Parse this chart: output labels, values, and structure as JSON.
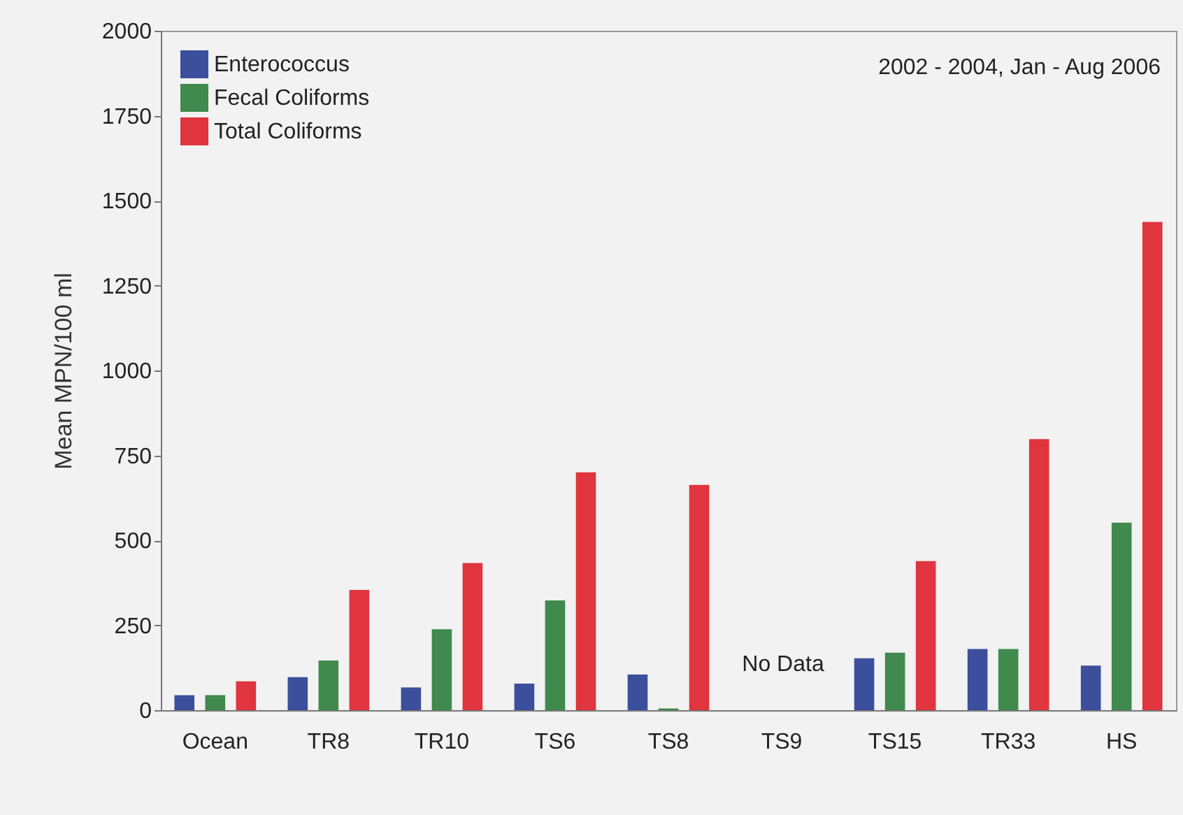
{
  "chart_data": {
    "type": "bar",
    "ylabel": "Mean MPN/100 ml",
    "categories": [
      "Ocean",
      "TR8",
      "TR10",
      "TS6",
      "TS8",
      "TS9",
      "TS15",
      "TR33",
      "HS"
    ],
    "series": [
      {
        "name": "Enterococcus",
        "color": "#3b4f9c",
        "values": [
          44,
          97,
          67,
          78,
          105,
          null,
          153,
          180,
          131
        ]
      },
      {
        "name": "Fecal Coliforms",
        "color": "#3f8a4c",
        "values": [
          44,
          146,
          238,
          323,
          5,
          null,
          169,
          180,
          552
        ]
      },
      {
        "name": "Total Coliforms",
        "color": "#e0343e",
        "values": [
          85,
          354,
          433,
          700,
          663,
          null,
          439,
          798,
          1437
        ]
      }
    ],
    "ylim": [
      0,
      2000
    ],
    "yticks": [
      0,
      250,
      500,
      750,
      1000,
      1250,
      1500,
      1750,
      2000
    ],
    "legend": "top left",
    "annotations": [
      "2002 - 2004, Jan - Aug 2006",
      "No Data"
    ]
  }
}
